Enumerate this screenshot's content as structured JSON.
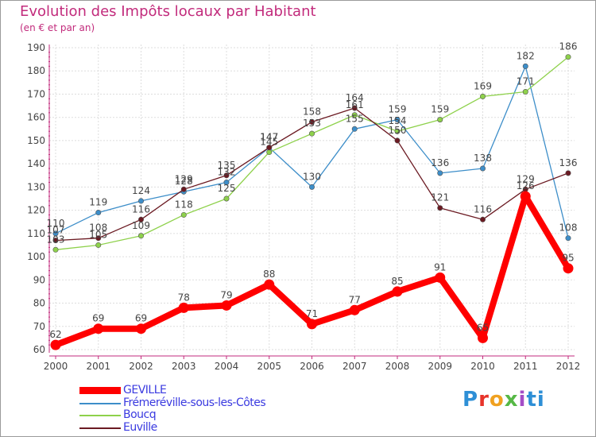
{
  "header": {
    "title": "Evolution des Impôts locaux par Habitant",
    "subtitle": "(en € et par an)"
  },
  "logo": {
    "text": "Proxiti"
  },
  "chart_data": {
    "type": "line",
    "title": "Evolution des Impôts locaux par Habitant",
    "subtitle": "(en € et par an)",
    "xlabel": "",
    "ylabel": "",
    "categories": [
      "2000",
      "2001",
      "2002",
      "2003",
      "2004",
      "2005",
      "2006",
      "2007",
      "2008",
      "2009",
      "2010",
      "2011",
      "2012"
    ],
    "ylim": [
      60,
      190
    ],
    "yticks": [
      60,
      70,
      80,
      90,
      100,
      110,
      120,
      130,
      140,
      150,
      160,
      170,
      180,
      190
    ],
    "grid": true,
    "legend_position": "bottom-left",
    "series": [
      {
        "name": "GEVILLE",
        "color": "#ff0000",
        "values": [
          62,
          69,
          69,
          78,
          79,
          88,
          71,
          77,
          85,
          91,
          65,
          126,
          95
        ]
      },
      {
        "name": "Frémeréville-sous-les-Côtes",
        "color": "#3d8ec9",
        "values": [
          110,
          119,
          124,
          128,
          132,
          147,
          130,
          155,
          159,
          136,
          138,
          182,
          108
        ]
      },
      {
        "name": "Boucq",
        "color": "#8ed14b",
        "values": [
          103,
          105,
          109,
          118,
          125,
          145,
          153,
          161,
          154,
          159,
          169,
          171,
          186
        ]
      },
      {
        "name": "Euville",
        "color": "#6b1a22",
        "values": [
          107,
          108,
          116,
          129,
          135,
          147,
          158,
          164,
          150,
          121,
          116,
          129,
          136
        ]
      }
    ]
  }
}
